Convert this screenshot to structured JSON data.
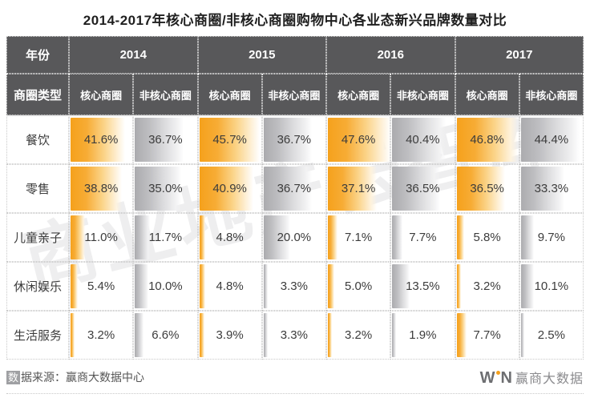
{
  "title": "2014-2017年核心商圈/非核心商圈购物中心各业态新兴品牌数量对比",
  "watermark": "商业地产云智库",
  "colors": {
    "header_bg": "#58585A",
    "core_bar": "#F5A11C",
    "noncore_bar": "#ABABAE"
  },
  "table": {
    "year_header_label": "年份",
    "type_header_label": "商圈类型",
    "years": [
      "2014",
      "2015",
      "2016",
      "2017"
    ],
    "subheaders": [
      "核心商圈",
      "非核心商圈",
      "核心商圈",
      "非核心商圈",
      "核心商圈",
      "非核心商圈",
      "核心商圈",
      "非核心商圈"
    ],
    "rows": [
      {
        "category": "餐饮",
        "values": [
          "41.6%",
          "36.7%",
          "45.7%",
          "36.7%",
          "47.6%",
          "40.4%",
          "46.8%",
          "44.4%"
        ]
      },
      {
        "category": "零售",
        "values": [
          "38.8%",
          "35.0%",
          "40.9%",
          "36.7%",
          "37.1%",
          "36.5%",
          "36.5%",
          "33.3%"
        ]
      },
      {
        "category": "儿童亲子",
        "values": [
          "11.0%",
          "11.7%",
          "4.8%",
          "20.0%",
          "7.1%",
          "7.7%",
          "5.8%",
          "9.7%"
        ]
      },
      {
        "category": "休闲娱乐",
        "values": [
          "5.4%",
          "10.0%",
          "4.8%",
          "3.3%",
          "5.0%",
          "13.5%",
          "3.2%",
          "10.1%"
        ]
      },
      {
        "category": "生活服务",
        "values": [
          "3.2%",
          "6.6%",
          "3.9%",
          "3.3%",
          "3.2%",
          "1.9%",
          "7.7%",
          "2.5%"
        ]
      }
    ]
  },
  "footer": {
    "source_badge_char": "数",
    "source_text": "据来源：赢商大数据中心",
    "logo_left": "W",
    "logo_right": "N",
    "logo_cn": "赢商大数据"
  },
  "chart_data": {
    "type": "table",
    "title": "2014-2017年核心商圈/非核心商圈购物中心各业态新兴品牌数量对比",
    "row_header": "商圈类型",
    "col_groups": [
      "2014",
      "2015",
      "2016",
      "2017"
    ],
    "col_subheaders": [
      "核心商圈",
      "非核心商圈"
    ],
    "categories": [
      "餐饮",
      "零售",
      "儿童亲子",
      "休闲娱乐",
      "生活服务"
    ],
    "unit": "%",
    "bar_scale_max": 47.6,
    "series": [
      {
        "name": "2014-核心商圈",
        "values": [
          41.6,
          38.8,
          11.0,
          5.4,
          3.2
        ]
      },
      {
        "name": "2014-非核心商圈",
        "values": [
          36.7,
          35.0,
          11.7,
          10.0,
          6.6
        ]
      },
      {
        "name": "2015-核心商圈",
        "values": [
          45.7,
          40.9,
          4.8,
          4.8,
          3.9
        ]
      },
      {
        "name": "2015-非核心商圈",
        "values": [
          36.7,
          36.7,
          20.0,
          3.3,
          3.3
        ]
      },
      {
        "name": "2016-核心商圈",
        "values": [
          47.6,
          37.1,
          7.1,
          5.0,
          3.2
        ]
      },
      {
        "name": "2016-非核心商圈",
        "values": [
          40.4,
          36.5,
          7.7,
          13.5,
          1.9
        ]
      },
      {
        "name": "2017-核心商圈",
        "values": [
          46.8,
          36.5,
          5.8,
          3.2,
          7.7
        ]
      },
      {
        "name": "2017-非核心商圈",
        "values": [
          44.4,
          33.3,
          9.7,
          10.1,
          2.5
        ]
      }
    ],
    "source": "赢商大数据中心"
  }
}
